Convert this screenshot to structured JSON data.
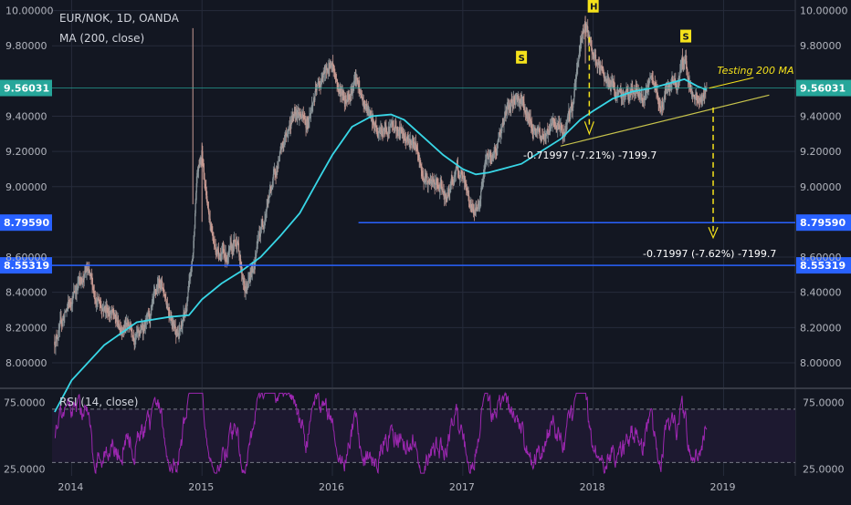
{
  "header": {
    "title": "EUR/NOK, 1D, OANDA",
    "ma_label": "MA (200, close)",
    "rsi_label": "RSI (14, close)"
  },
  "colors": {
    "background": "#131722",
    "grid": "#262b3b",
    "candle_up": "#8a9499",
    "candle_down": "#c89a92",
    "ma": "#38d6e6",
    "rsi": "#9c27b0",
    "horizontal": "#2962ff",
    "trend": "#c8c44c",
    "pattern": "#f5e21b",
    "price_tag": "#26a69a"
  },
  "chart_data": [
    {
      "type": "candlestick",
      "title": "EUR/NOK, 1D, OANDA",
      "ylim": [
        7.86,
        10.06
      ],
      "y_ticks": [
        "8.00000",
        "8.20000",
        "8.40000",
        "8.60000",
        "9.00000",
        "9.20000",
        "9.40000",
        "9.80000",
        "10.00000"
      ],
      "x_ticks": [
        "2014",
        "2015",
        "2016",
        "2017",
        "2018",
        "2019"
      ],
      "price_path": [
        [
          2013.87,
          8.12
        ],
        [
          2013.95,
          8.28
        ],
        [
          2014.0,
          8.36
        ],
        [
          2014.05,
          8.45
        ],
        [
          2014.12,
          8.52
        ],
        [
          2014.2,
          8.35
        ],
        [
          2014.28,
          8.3
        ],
        [
          2014.36,
          8.22
        ],
        [
          2014.45,
          8.2
        ],
        [
          2014.5,
          8.15
        ],
        [
          2014.6,
          8.25
        ],
        [
          2014.68,
          8.48
        ],
        [
          2014.75,
          8.3
        ],
        [
          2014.82,
          8.15
        ],
        [
          2014.88,
          8.3
        ],
        [
          2014.93,
          8.6
        ],
        [
          2014.96,
          9.05
        ],
        [
          2015.0,
          9.2
        ],
        [
          2015.05,
          8.85
        ],
        [
          2015.1,
          8.65
        ],
        [
          2015.2,
          8.6
        ],
        [
          2015.27,
          8.7
        ],
        [
          2015.33,
          8.4
        ],
        [
          2015.38,
          8.5
        ],
        [
          2015.45,
          8.75
        ],
        [
          2015.55,
          9.05
        ],
        [
          2015.65,
          9.3
        ],
        [
          2015.72,
          9.45
        ],
        [
          2015.8,
          9.35
        ],
        [
          2015.88,
          9.55
        ],
        [
          2015.95,
          9.65
        ],
        [
          2016.0,
          9.7
        ],
        [
          2016.05,
          9.55
        ],
        [
          2016.1,
          9.5
        ],
        [
          2016.18,
          9.6
        ],
        [
          2016.25,
          9.45
        ],
        [
          2016.35,
          9.3
        ],
        [
          2016.45,
          9.35
        ],
        [
          2016.55,
          9.3
        ],
        [
          2016.62,
          9.25
        ],
        [
          2016.7,
          9.05
        ],
        [
          2016.8,
          9.0
        ],
        [
          2016.88,
          8.95
        ],
        [
          2016.95,
          9.1
        ],
        [
          2017.02,
          9.0
        ],
        [
          2017.08,
          8.85
        ],
        [
          2017.12,
          8.9
        ],
        [
          2017.18,
          9.15
        ],
        [
          2017.25,
          9.2
        ],
        [
          2017.32,
          9.4
        ],
        [
          2017.4,
          9.5
        ],
        [
          2017.45,
          9.5
        ],
        [
          2017.52,
          9.35
        ],
        [
          2017.6,
          9.28
        ],
        [
          2017.7,
          9.35
        ],
        [
          2017.78,
          9.3
        ],
        [
          2017.84,
          9.45
        ],
        [
          2017.9,
          9.8
        ],
        [
          2017.94,
          9.95
        ],
        [
          2017.97,
          9.85
        ],
        [
          2018.0,
          9.75
        ],
        [
          2018.05,
          9.65
        ],
        [
          2018.12,
          9.6
        ],
        [
          2018.2,
          9.5
        ],
        [
          2018.3,
          9.55
        ],
        [
          2018.38,
          9.5
        ],
        [
          2018.45,
          9.6
        ],
        [
          2018.52,
          9.45
        ],
        [
          2018.58,
          9.55
        ],
        [
          2018.65,
          9.6
        ],
        [
          2018.68,
          9.7
        ],
        [
          2018.71,
          9.72
        ],
        [
          2018.75,
          9.55
        ],
        [
          2018.8,
          9.48
        ],
        [
          2018.84,
          9.5
        ],
        [
          2018.87,
          9.56
        ]
      ],
      "ma_path": [
        [
          2013.87,
          7.72
        ],
        [
          2014.0,
          7.9
        ],
        [
          2014.25,
          8.1
        ],
        [
          2014.5,
          8.23
        ],
        [
          2014.75,
          8.26
        ],
        [
          2014.9,
          8.27
        ],
        [
          2015.0,
          8.36
        ],
        [
          2015.15,
          8.45
        ],
        [
          2015.3,
          8.52
        ],
        [
          2015.45,
          8.6
        ],
        [
          2015.6,
          8.72
        ],
        [
          2015.75,
          8.85
        ],
        [
          2015.9,
          9.05
        ],
        [
          2016.0,
          9.18
        ],
        [
          2016.15,
          9.34
        ],
        [
          2016.3,
          9.4
        ],
        [
          2016.45,
          9.41
        ],
        [
          2016.55,
          9.38
        ],
        [
          2016.7,
          9.28
        ],
        [
          2016.85,
          9.18
        ],
        [
          2017.0,
          9.1
        ],
        [
          2017.1,
          9.07
        ],
        [
          2017.2,
          9.08
        ],
        [
          2017.3,
          9.1
        ],
        [
          2017.45,
          9.13
        ],
        [
          2017.6,
          9.2
        ],
        [
          2017.75,
          9.27
        ],
        [
          2017.9,
          9.38
        ],
        [
          2018.0,
          9.43
        ],
        [
          2018.15,
          9.5
        ],
        [
          2018.3,
          9.54
        ],
        [
          2018.45,
          9.56
        ],
        [
          2018.6,
          9.59
        ],
        [
          2018.7,
          9.61
        ],
        [
          2018.8,
          9.57
        ],
        [
          2018.87,
          9.55
        ]
      ],
      "annotations": {
        "head_label": "H",
        "shoulder_left_label": "S",
        "shoulder_right_label": "S",
        "testing_text": "Testing 200 MA",
        "measure_1": "-0.71997 (-7.21%) -7199.7",
        "measure_2": "-0.71997 (-7.62%) -7199.7"
      },
      "levels": [
        {
          "name": "last-price",
          "value": 9.56031,
          "label": "9.56031"
        },
        {
          "name": "target-level",
          "value": 8.7959,
          "label": "8.79590"
        },
        {
          "name": "support-level",
          "value": 8.55319,
          "label": "8.55319"
        }
      ]
    },
    {
      "type": "line",
      "title": "RSI (14, close)",
      "ylim": [
        20,
        85
      ],
      "y_ticks": [
        "75.0000",
        "25.0000"
      ],
      "upper_band": 70,
      "lower_band": 30
    }
  ]
}
